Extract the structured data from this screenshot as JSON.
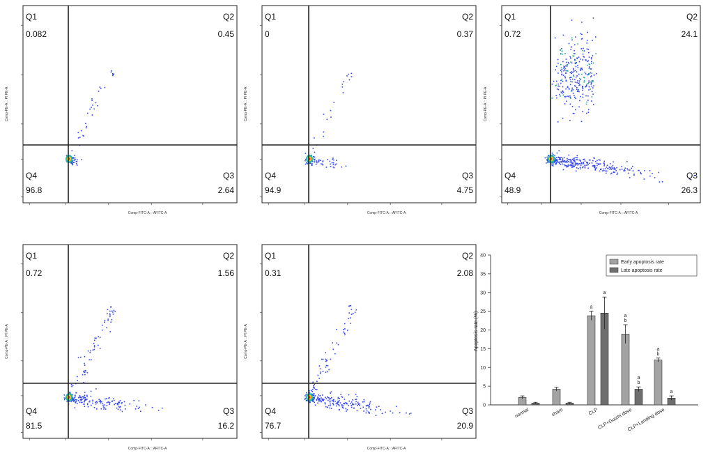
{
  "flow_plots": [
    {
      "axis_x_label": "Comp-FITC-A :: AFITC-A",
      "axis_y_label": "Comp-PE-A :: PI PE-A",
      "quadrants": {
        "Q1": {
          "label": "Q1",
          "value": "0.082"
        },
        "Q2": {
          "label": "Q2",
          "value": "0.45"
        },
        "Q3": {
          "label": "Q3",
          "value": "2.64"
        },
        "Q4": {
          "label": "Q4",
          "value": "96.8"
        }
      }
    },
    {
      "axis_x_label": "Comp-FITC-A :: AFITC-A",
      "axis_y_label": "Comp-PE-A :: PI PE-A",
      "quadrants": {
        "Q1": {
          "label": "Q1",
          "value": "0"
        },
        "Q2": {
          "label": "Q2",
          "value": "0.37"
        },
        "Q3": {
          "label": "Q3",
          "value": "4.75"
        },
        "Q4": {
          "label": "Q4",
          "value": "94.9"
        }
      }
    },
    {
      "axis_x_label": "Comp-FITC-A :: AFITC-A",
      "axis_y_label": "Comp-PE-A :: PI PE-A",
      "quadrants": {
        "Q1": {
          "label": "Q1",
          "value": "0.72"
        },
        "Q2": {
          "label": "Q2",
          "value": "24.1"
        },
        "Q3": {
          "label": "Q3",
          "value": "26.3"
        },
        "Q4": {
          "label": "Q4",
          "value": "48.9"
        }
      }
    },
    {
      "axis_x_label": "Comp-FITC-A :: AFITC-A",
      "axis_y_label": "Comp-PE-A :: PI PE-A",
      "quadrants": {
        "Q1": {
          "label": "Q1",
          "value": "0.72"
        },
        "Q2": {
          "label": "Q2",
          "value": "1.56"
        },
        "Q3": {
          "label": "Q3",
          "value": "16.2"
        },
        "Q4": {
          "label": "Q4",
          "value": "81.5"
        }
      }
    },
    {
      "axis_x_label": "Comp-FITC-A :: AFITC-A",
      "axis_y_label": "Comp-PE-A :: PI PE-A",
      "quadrants": {
        "Q1": {
          "label": "Q1",
          "value": "0.31"
        },
        "Q2": {
          "label": "Q2",
          "value": "2.08"
        },
        "Q3": {
          "label": "Q3",
          "value": "20.9"
        },
        "Q4": {
          "label": "Q4",
          "value": "76.7"
        }
      }
    }
  ],
  "chart_data": {
    "type": "bar",
    "ylabel": "Apoptosis rate (%)",
    "ylim": [
      0,
      40
    ],
    "yticks": [
      "0",
      "5",
      "10",
      "15",
      "20",
      "25",
      "30",
      "35",
      "40"
    ],
    "categories": [
      "normal",
      "sham",
      "CLP",
      "CLP+Guizhi dose",
      "CLP+Landing dose"
    ],
    "series": [
      {
        "name": "Early apoptosis rate",
        "color": "#a3a3a3",
        "values": [
          2.0,
          4.2,
          23.8,
          18.9,
          12.0
        ],
        "errors": [
          0.4,
          0.5,
          1.2,
          2.5,
          0.5
        ],
        "annotations": [
          "",
          "",
          "a",
          "a\nb",
          "a\nb"
        ]
      },
      {
        "name": "Late apoptosis rate",
        "color": "#6e6e6e",
        "values": [
          0.5,
          0.5,
          24.5,
          4.2,
          1.8
        ],
        "errors": [
          0.2,
          0.2,
          4.3,
          0.6,
          0.6
        ],
        "annotations": [
          "",
          "",
          "a",
          "a\nb",
          "a"
        ]
      }
    ],
    "legend_position": "top-right"
  }
}
